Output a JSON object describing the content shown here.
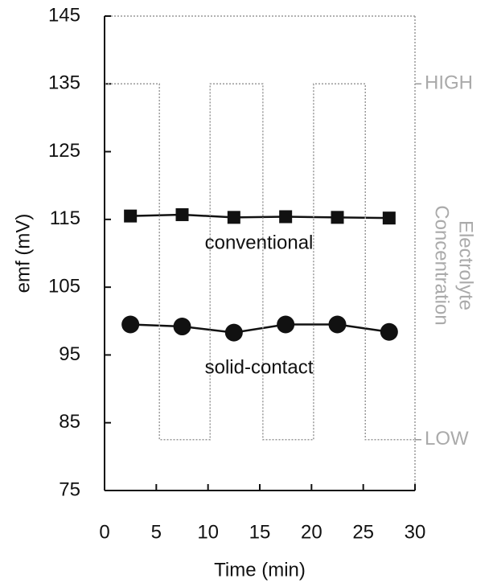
{
  "chart_data": {
    "type": "line",
    "xlabel": "Time (min)",
    "ylabel": "emf (mV)",
    "y2label": [
      "Electrolyte",
      "Concentration"
    ],
    "xlim": [
      0,
      30
    ],
    "xticks": [
      0,
      5,
      10,
      15,
      20,
      25,
      30
    ],
    "ylim": [
      75,
      145
    ],
    "yticks": [
      75,
      85,
      95,
      105,
      115,
      125,
      135,
      145
    ],
    "y2lim": [
      75,
      145
    ],
    "y2ticks": [
      {
        "value": 135,
        "label": "HIGH"
      },
      {
        "value": 82.5,
        "label": "LOW"
      }
    ],
    "annotations": [
      "conventional",
      "solid-contact"
    ],
    "series": [
      {
        "marker": "square",
        "color": "#111111",
        "x": [
          2.5,
          7.5,
          12.5,
          17.5,
          22.5,
          27.5
        ],
        "values": [
          115.5,
          115.7,
          115.3,
          115.4,
          115.3,
          115.2
        ]
      },
      {
        "marker": "circle",
        "color": "#111111",
        "x": [
          2.5,
          7.5,
          12.5,
          17.5,
          22.5,
          27.5
        ],
        "values": [
          99.5,
          99.2,
          98.3,
          99.5,
          99.5,
          98.4
        ]
      },
      {
        "axis": "y2",
        "dashed": true,
        "color": "#999999",
        "x": [
          0,
          5.3,
          5.3,
          10.2,
          10.2,
          15.3,
          15.3,
          20.2,
          20.2,
          25.2,
          25.2,
          30
        ],
        "values": [
          135,
          135,
          82.5,
          82.5,
          135,
          135,
          82.5,
          82.5,
          135,
          135,
          82.5,
          82.5
        ]
      }
    ]
  }
}
